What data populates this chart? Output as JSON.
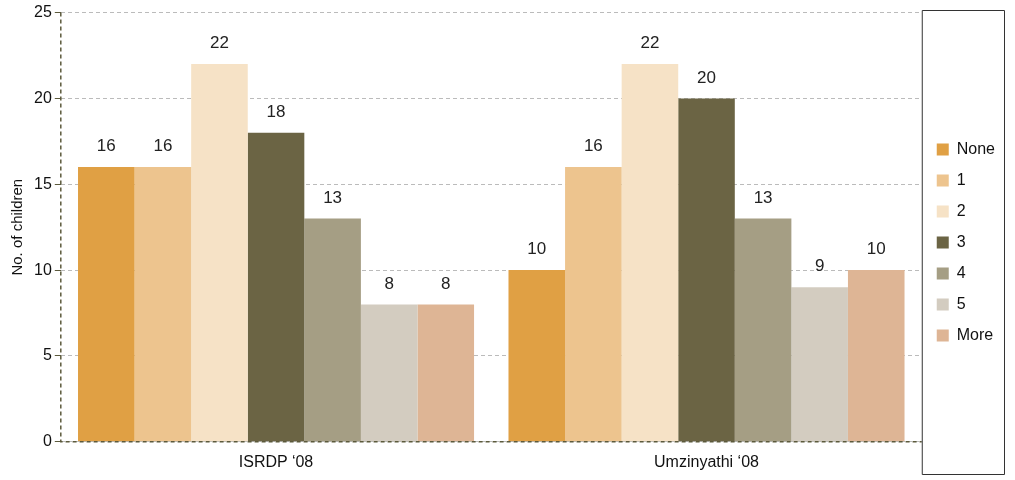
{
  "chart_data": {
    "type": "bar",
    "ylabel": "No. of children",
    "categories": [
      "ISRDP ‘08",
      "Umzinyathi ‘08"
    ],
    "series": [
      {
        "name": "None",
        "color": "#e0a044",
        "values": [
          16,
          10
        ]
      },
      {
        "name": "1",
        "color": "#edc48e",
        "values": [
          16,
          16
        ]
      },
      {
        "name": "2",
        "color": "#f6e2c6",
        "values": [
          22,
          22
        ]
      },
      {
        "name": "3",
        "color": "#6b6444",
        "values": [
          18,
          20
        ]
      },
      {
        "name": "4",
        "color": "#a59e84",
        "values": [
          13,
          13
        ]
      },
      {
        "name": "5",
        "color": "#d3ccc0",
        "values": [
          8,
          9
        ]
      },
      {
        "name": "More",
        "color": "#deb595",
        "values": [
          8,
          10
        ]
      }
    ],
    "ylim": [
      0,
      25
    ],
    "yticks": [
      0,
      5,
      10,
      15,
      20,
      25
    ],
    "grid": "y",
    "legend": "right",
    "data_labels": true
  }
}
